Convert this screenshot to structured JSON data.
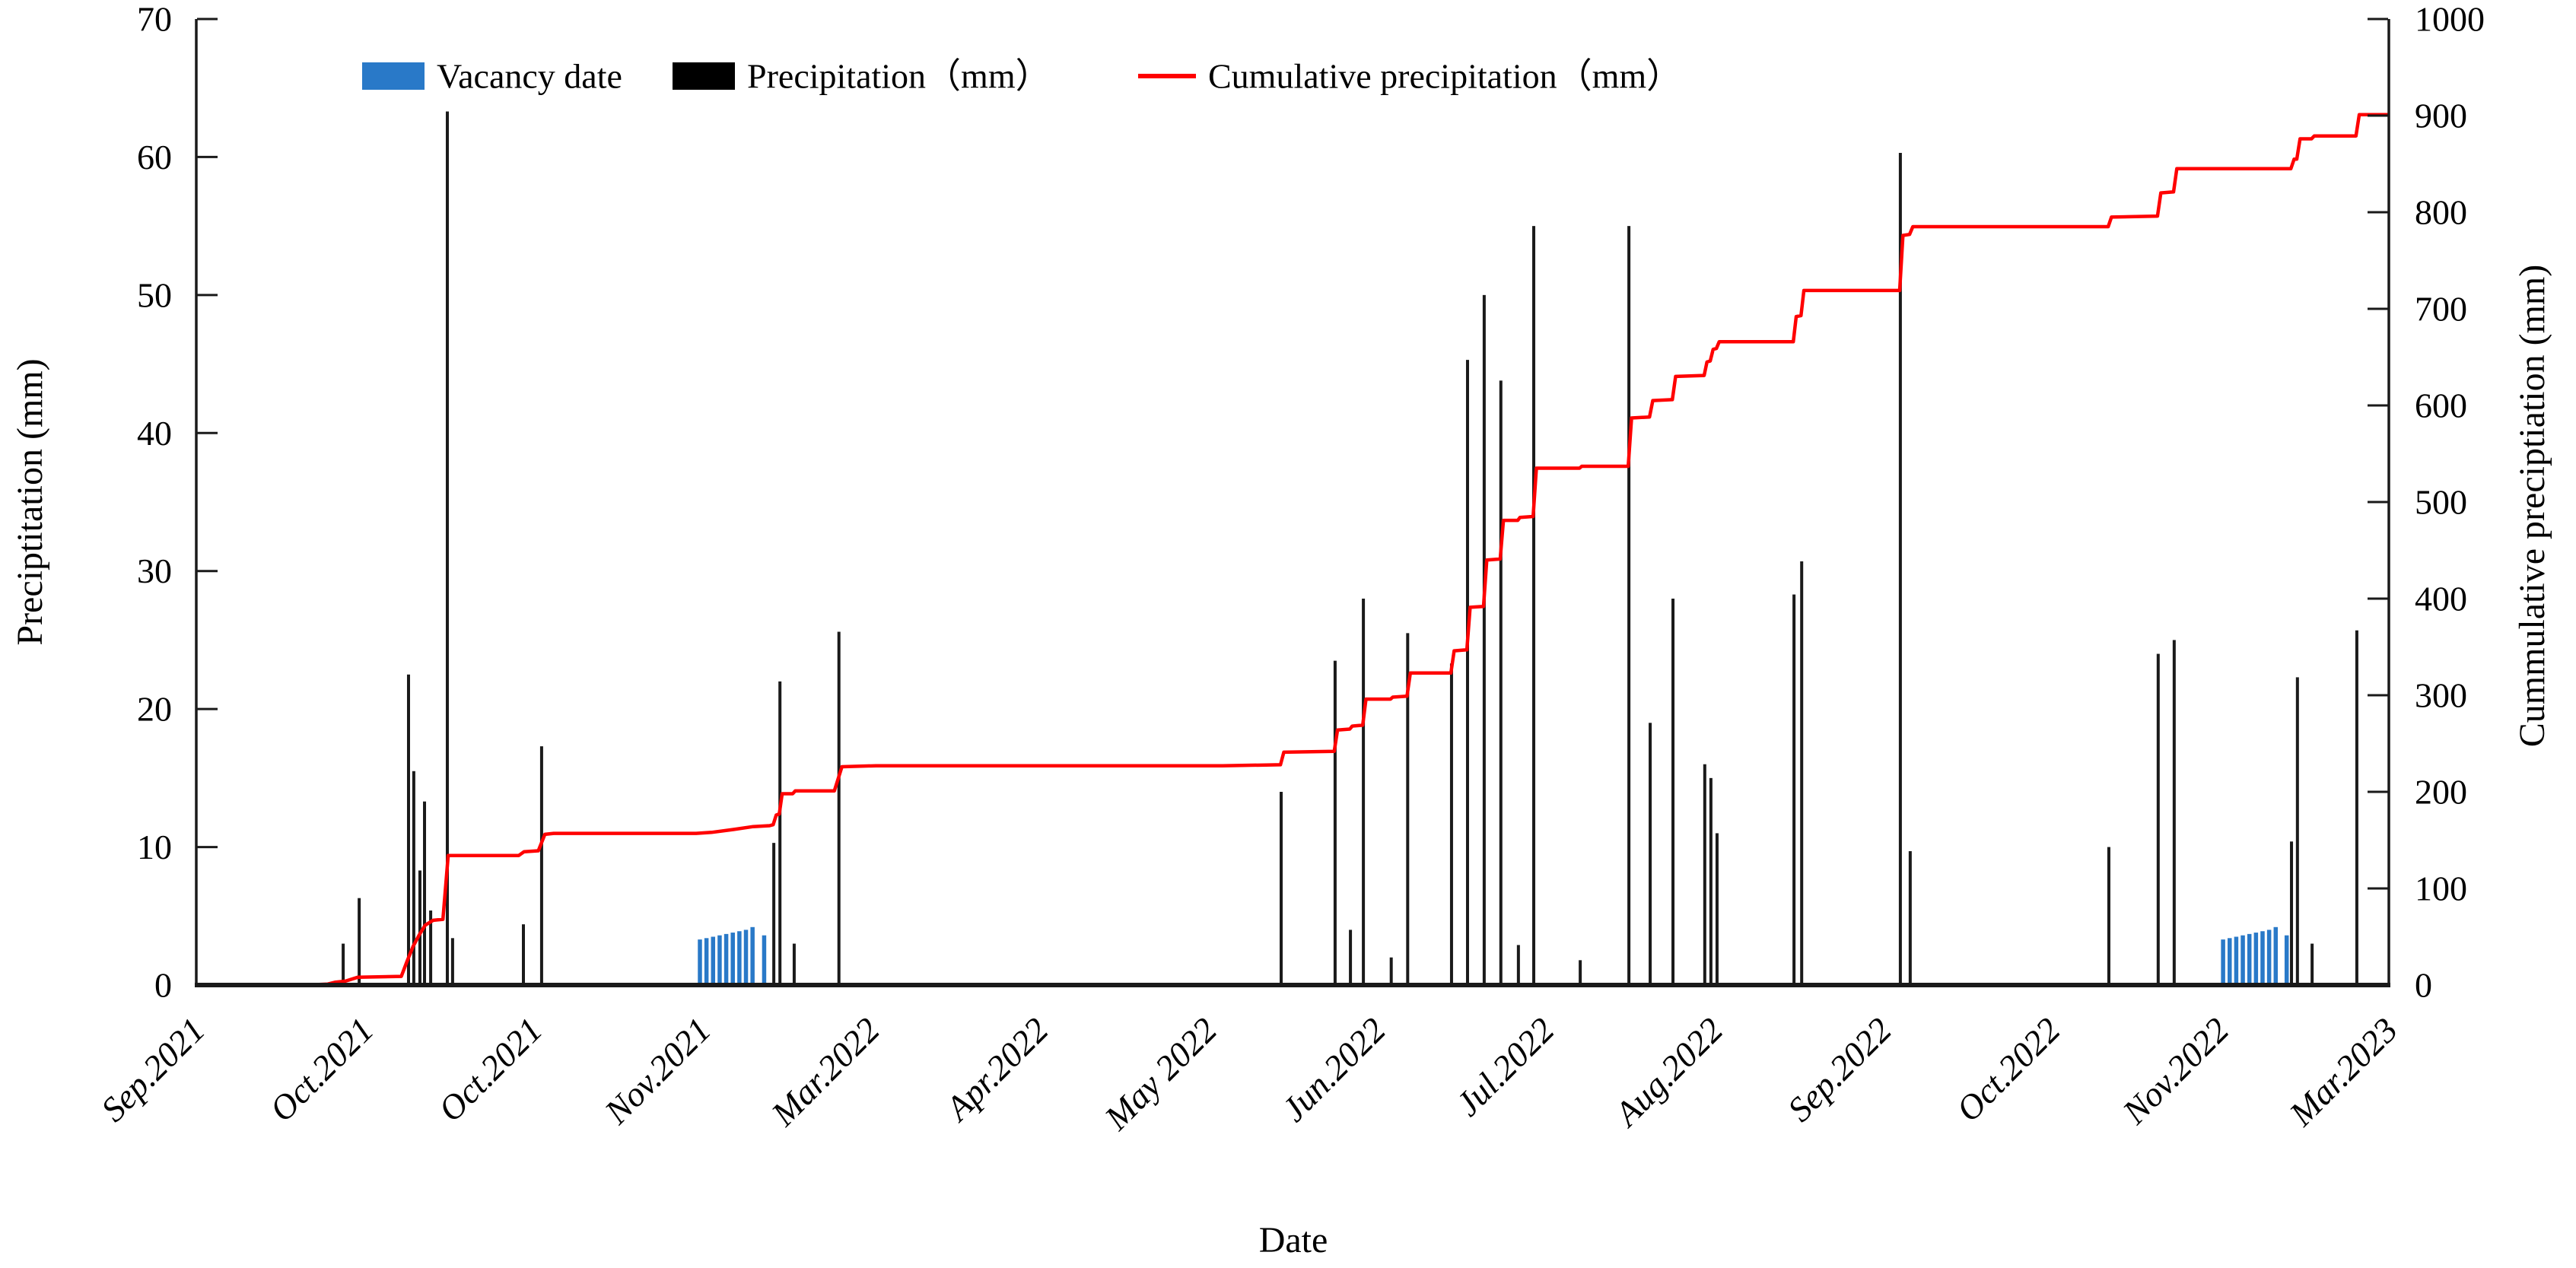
{
  "figure": {
    "background": "#ffffff"
  },
  "chart_data": {
    "type": "bar",
    "combo": "bar+line",
    "title": "",
    "xlabel": "Date",
    "ylabel_left": "Preciptitation (mm)",
    "ylabel_right": "Cummulative preciptiation (mm)",
    "y_left": {
      "min": 0,
      "max": 70,
      "step": 10,
      "tick_labels": [
        "0",
        "10",
        "20",
        "30",
        "40",
        "50",
        "60",
        "70"
      ]
    },
    "y_right": {
      "min": 0,
      "max": 1000,
      "step": 100,
      "tick_labels": [
        "0",
        "100",
        "200",
        "300",
        "400",
        "500",
        "600",
        "700",
        "800",
        "900",
        "1000"
      ]
    },
    "x_tick_labels": [
      "Sep.2021",
      "Oct.2021",
      "Oct.2021",
      "Nov.2021",
      "Mar.2022",
      "Apr.2022",
      "May 2022",
      "Jun.2022",
      "Jul.2022",
      "Aug.2022",
      "Sep.2022",
      "Oct.2022",
      "Nov.2022",
      "Mar.2023"
    ],
    "grid": false,
    "legend_position": "top-inside",
    "legend": [
      {
        "label": "Vacancy date",
        "type": "patch",
        "color": "#2979C8"
      },
      {
        "label": "Precipitation（mm）",
        "type": "patch",
        "color": "#000000"
      },
      {
        "label": "Cumulative precipitation（mm）",
        "type": "line",
        "color": "#FF0000"
      }
    ],
    "series": [
      {
        "name": "Precipitation（mm）",
        "type": "bar",
        "axis": "left",
        "color": "#1a1a1a",
        "points": [
          [
            0.067,
            3.0
          ],
          [
            0.0743,
            6.3
          ],
          [
            0.0968,
            22.5
          ],
          [
            0.0992,
            15.5
          ],
          [
            0.102,
            8.3
          ],
          [
            0.1041,
            13.3
          ],
          [
            0.1069,
            5.4
          ],
          [
            0.1145,
            63.3
          ],
          [
            0.1169,
            3.4
          ],
          [
            0.1492,
            4.4
          ],
          [
            0.1575,
            17.3
          ],
          [
            0.2634,
            10.3
          ],
          [
            0.2662,
            22.0
          ],
          [
            0.2727,
            3.0
          ],
          [
            0.2931,
            25.6
          ],
          [
            0.4948,
            14.0
          ],
          [
            0.5194,
            23.5
          ],
          [
            0.5264,
            4.0
          ],
          [
            0.5323,
            28.0
          ],
          [
            0.545,
            2.0
          ],
          [
            0.5525,
            25.5
          ],
          [
            0.5725,
            23.3
          ],
          [
            0.5798,
            45.3
          ],
          [
            0.5874,
            50.0
          ],
          [
            0.595,
            43.8
          ],
          [
            0.603,
            2.9
          ],
          [
            0.61,
            55.0
          ],
          [
            0.6312,
            1.8
          ],
          [
            0.6534,
            55.0
          ],
          [
            0.6631,
            19.0
          ],
          [
            0.6735,
            28.0
          ],
          [
            0.688,
            16.0
          ],
          [
            0.6908,
            15.0
          ],
          [
            0.6936,
            11.0
          ],
          [
            0.7287,
            28.3
          ],
          [
            0.7322,
            30.7
          ],
          [
            0.7772,
            60.3
          ],
          [
            0.7817,
            9.7
          ],
          [
            0.8723,
            10.0
          ],
          [
            0.8948,
            24.0
          ],
          [
            0.9021,
            25.0
          ],
          [
            0.9556,
            10.4
          ],
          [
            0.9583,
            22.3
          ],
          [
            0.965,
            3.0
          ],
          [
            0.9854,
            25.7
          ]
        ]
      },
      {
        "name": "Vacancy date",
        "type": "bar",
        "axis": "left",
        "color": "#2979C8",
        "points": [
          [
            0.2297,
            3.3
          ],
          [
            0.2327,
            3.4
          ],
          [
            0.2357,
            3.5
          ],
          [
            0.2387,
            3.6
          ],
          [
            0.2417,
            3.7
          ],
          [
            0.2447,
            3.8
          ],
          [
            0.2477,
            3.9
          ],
          [
            0.2507,
            4.0
          ],
          [
            0.2537,
            4.2
          ],
          [
            0.259,
            3.6
          ],
          [
            0.9244,
            3.3
          ],
          [
            0.9274,
            3.4
          ],
          [
            0.9304,
            3.5
          ],
          [
            0.9334,
            3.6
          ],
          [
            0.9364,
            3.7
          ],
          [
            0.9394,
            3.8
          ],
          [
            0.9424,
            3.9
          ],
          [
            0.9454,
            4.0
          ],
          [
            0.9484,
            4.2
          ],
          [
            0.9534,
            3.6
          ]
        ]
      },
      {
        "name": "Cumulative precipitation（mm）",
        "type": "line",
        "axis": "right",
        "color": "#FF0000",
        "points": [
          [
            0.0,
            0
          ],
          [
            0.05,
            0
          ],
          [
            0.06,
            1
          ],
          [
            0.0635,
            3
          ],
          [
            0.068,
            4
          ],
          [
            0.0736,
            8
          ],
          [
            0.0935,
            9
          ],
          [
            0.0962,
            25
          ],
          [
            0.0989,
            40
          ],
          [
            0.1017,
            52
          ],
          [
            0.1044,
            62
          ],
          [
            0.108,
            67
          ],
          [
            0.1125,
            68
          ],
          [
            0.1149,
            134
          ],
          [
            0.147,
            134
          ],
          [
            0.1495,
            138
          ],
          [
            0.156,
            139
          ],
          [
            0.159,
            156
          ],
          [
            0.163,
            157
          ],
          [
            0.228,
            157
          ],
          [
            0.235,
            158
          ],
          [
            0.245,
            161
          ],
          [
            0.254,
            164
          ],
          [
            0.2615,
            165
          ],
          [
            0.2631,
            166
          ],
          [
            0.2645,
            176
          ],
          [
            0.2659,
            177
          ],
          [
            0.2672,
            198
          ],
          [
            0.272,
            198
          ],
          [
            0.2732,
            201
          ],
          [
            0.291,
            201
          ],
          [
            0.2945,
            226
          ],
          [
            0.31,
            227
          ],
          [
            0.468,
            227
          ],
          [
            0.4945,
            228
          ],
          [
            0.496,
            241
          ],
          [
            0.519,
            242
          ],
          [
            0.5205,
            264
          ],
          [
            0.5261,
            265
          ],
          [
            0.5272,
            268
          ],
          [
            0.532,
            269
          ],
          [
            0.5335,
            296
          ],
          [
            0.5447,
            296
          ],
          [
            0.5457,
            298
          ],
          [
            0.5522,
            299
          ],
          [
            0.5537,
            323
          ],
          [
            0.5722,
            323
          ],
          [
            0.5737,
            346
          ],
          [
            0.5795,
            347
          ],
          [
            0.581,
            391
          ],
          [
            0.5871,
            392
          ],
          [
            0.5886,
            440
          ],
          [
            0.5947,
            441
          ],
          [
            0.5962,
            481
          ],
          [
            0.6027,
            481
          ],
          [
            0.6037,
            484
          ],
          [
            0.6097,
            485
          ],
          [
            0.6112,
            535
          ],
          [
            0.6309,
            535
          ],
          [
            0.6319,
            537
          ],
          [
            0.6531,
            537
          ],
          [
            0.6546,
            587
          ],
          [
            0.6628,
            588
          ],
          [
            0.6643,
            605
          ],
          [
            0.6732,
            606
          ],
          [
            0.6747,
            630
          ],
          [
            0.6877,
            631
          ],
          [
            0.689,
            645
          ],
          [
            0.6905,
            646
          ],
          [
            0.6918,
            658
          ],
          [
            0.6933,
            659
          ],
          [
            0.6946,
            666
          ],
          [
            0.7284,
            666
          ],
          [
            0.7297,
            692
          ],
          [
            0.7319,
            693
          ],
          [
            0.7332,
            719
          ],
          [
            0.7769,
            719
          ],
          [
            0.7784,
            776
          ],
          [
            0.7814,
            777
          ],
          [
            0.7829,
            785
          ],
          [
            0.872,
            785
          ],
          [
            0.8735,
            795
          ],
          [
            0.8945,
            796
          ],
          [
            0.896,
            820
          ],
          [
            0.9018,
            821
          ],
          [
            0.9033,
            845
          ],
          [
            0.9553,
            845
          ],
          [
            0.9568,
            855
          ],
          [
            0.958,
            855
          ],
          [
            0.9595,
            876
          ],
          [
            0.9647,
            876
          ],
          [
            0.966,
            879
          ],
          [
            0.985,
            879
          ],
          [
            0.9865,
            901
          ],
          [
            1.0,
            901
          ]
        ]
      }
    ]
  }
}
